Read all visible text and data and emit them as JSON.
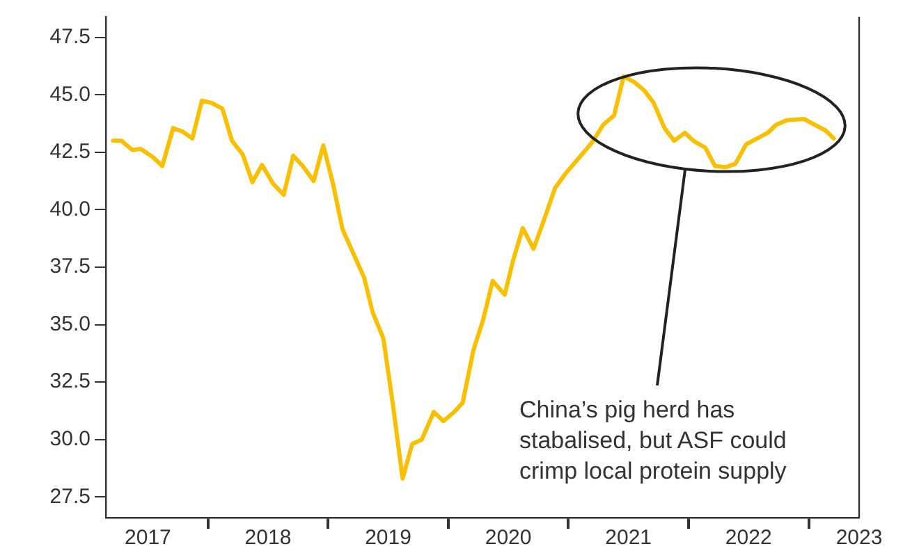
{
  "chart_data": {
    "type": "line",
    "x": [
      2017.21,
      2017.28,
      2017.37,
      2017.44,
      2017.54,
      2017.62,
      2017.71,
      2017.79,
      2017.87,
      2017.95,
      2018.03,
      2018.12,
      2018.2,
      2018.29,
      2018.37,
      2018.45,
      2018.54,
      2018.63,
      2018.71,
      2018.79,
      2018.88,
      2018.96,
      2019.04,
      2019.12,
      2019.21,
      2019.3,
      2019.37,
      2019.46,
      2019.54,
      2019.62,
      2019.7,
      2019.78,
      2019.88,
      2019.96,
      2020.05,
      2020.12,
      2020.21,
      2020.29,
      2020.37,
      2020.47,
      2020.54,
      2020.62,
      2020.71,
      2020.79,
      2020.89,
      2020.98,
      2021.12,
      2021.2,
      2021.29,
      2021.38,
      2021.46,
      2021.55,
      2021.63,
      2021.71,
      2021.8,
      2021.88,
      2021.97,
      2022.04,
      2022.14,
      2022.22,
      2022.31,
      2022.39,
      2022.48,
      2022.57,
      2022.66,
      2022.73,
      2022.82,
      2022.96,
      2023.05,
      2023.14,
      2023.21
    ],
    "series": [
      {
        "color": "#f8c000",
        "values": [
          43.0,
          43.0,
          42.6,
          42.65,
          42.3,
          41.9,
          43.55,
          43.4,
          43.1,
          44.75,
          44.65,
          44.4,
          43.0,
          42.4,
          41.2,
          41.95,
          41.15,
          40.65,
          42.35,
          41.9,
          41.25,
          42.8,
          41.15,
          39.15,
          38.1,
          37.05,
          35.55,
          34.4,
          31.5,
          28.3,
          29.8,
          30.0,
          31.2,
          30.8,
          31.2,
          31.6,
          33.9,
          35.2,
          36.9,
          36.3,
          37.8,
          39.2,
          38.3,
          39.45,
          40.95,
          41.6,
          42.45,
          42.95,
          43.7,
          44.1,
          45.8,
          45.55,
          45.2,
          44.65,
          43.55,
          43.0,
          43.35,
          43.0,
          42.7,
          41.9,
          41.85,
          42.0,
          42.85,
          43.1,
          43.35,
          43.7,
          43.9,
          43.95,
          43.7,
          43.45,
          43.1
        ]
      }
    ],
    "xlim": [
      2017.15,
      2023.42
    ],
    "xticks": [
      {
        "value": 2017.5,
        "label": "2017"
      },
      {
        "value": 2018,
        "label": null
      },
      {
        "value": 2018.5,
        "label": "2018"
      },
      {
        "value": 2019,
        "label": null
      },
      {
        "value": 2019.5,
        "label": "2019"
      },
      {
        "value": 2020,
        "label": null
      },
      {
        "value": 2020.5,
        "label": "2020"
      },
      {
        "value": 2021,
        "label": null
      },
      {
        "value": 2021.5,
        "label": "2021"
      },
      {
        "value": 2022,
        "label": null
      },
      {
        "value": 2022.5,
        "label": "2022"
      },
      {
        "value": 2023,
        "label": null
      },
      {
        "value": 2023.42,
        "label": "2023"
      }
    ],
    "ylim": [
      26.6,
      48.4
    ],
    "yticks": [
      {
        "value": 27.5,
        "label": "27.5"
      },
      {
        "value": 30,
        "label": "30.0"
      },
      {
        "value": 32.5,
        "label": "32.5"
      },
      {
        "value": 35,
        "label": "35.0"
      },
      {
        "value": 37.5,
        "label": "37.5"
      },
      {
        "value": 40,
        "label": "40.0"
      },
      {
        "value": 42.5,
        "label": "42.5"
      },
      {
        "value": 45,
        "label": "45.0"
      },
      {
        "value": 47.5,
        "label": "47.5"
      }
    ],
    "grid": false,
    "legend": false,
    "marker": "none",
    "line_style": "solid",
    "annotations": [
      "China’s pig herd has stabalised, but ASF could crimp local protein supply"
    ]
  }
}
